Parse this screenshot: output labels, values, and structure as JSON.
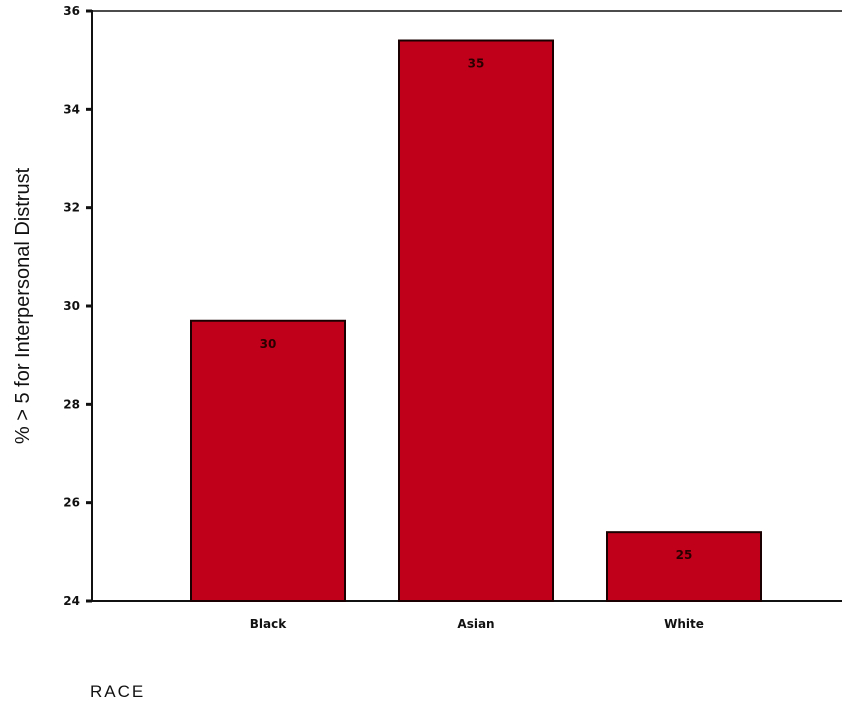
{
  "chart_data": {
    "type": "bar",
    "categories": [
      "Black",
      "Asian",
      "White"
    ],
    "values": [
      29.7,
      35.4,
      25.4
    ],
    "value_labels": [
      "30",
      "35",
      "25"
    ],
    "ylabel": "% > 5 for Interpersonal Distrust",
    "xlabel": "RACE",
    "ylim": [
      24,
      36
    ],
    "yticks": [
      24,
      26,
      28,
      30,
      32,
      34,
      36
    ],
    "bar_color": "#c0001a",
    "grid": false
  }
}
